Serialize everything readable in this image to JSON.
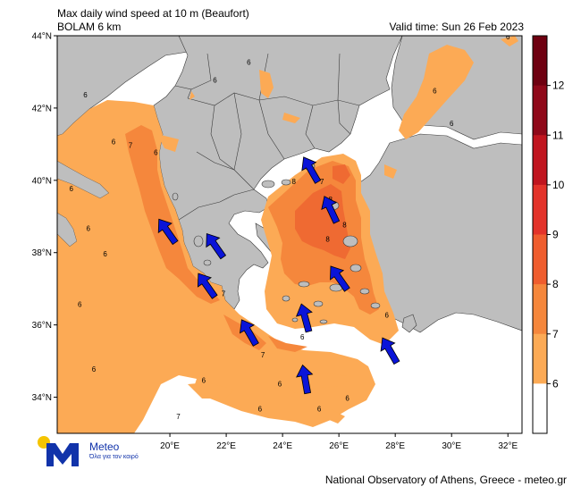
{
  "title": {
    "line1": "Max daily wind speed at 10 m (Beaufort)",
    "line2": "BOLAM 6 km",
    "valid": "Valid time: Sun 26 Feb 2023"
  },
  "footer": "National Observatory of Athens, Greece - meteo.gr",
  "logo": {
    "name": "Meteo",
    "tagline": "Όλα για τον καιρό"
  },
  "map": {
    "lat_labels": [
      "44°N",
      "42°N",
      "40°N",
      "38°N",
      "36°N",
      "34°N"
    ],
    "lat_values": [
      44,
      42,
      40,
      38,
      36,
      34
    ],
    "lon_labels": [
      "20°E",
      "22°E",
      "24°E",
      "26°E",
      "28°E",
      "30°E",
      "32°E"
    ],
    "lon_values": [
      20,
      22,
      24,
      26,
      28,
      30,
      32
    ],
    "extent": {
      "lon_min": 16,
      "lon_max": 32.5,
      "lat_min": 33,
      "lat_max": 44
    },
    "contour_labels": [
      {
        "text": "6",
        "lon": 32.0,
        "lat": 43.9
      },
      {
        "text": "6",
        "lon": 17.0,
        "lat": 42.3
      },
      {
        "text": "6",
        "lon": 22.8,
        "lat": 43.2
      },
      {
        "text": "6",
        "lon": 21.6,
        "lat": 42.7
      },
      {
        "text": "6",
        "lon": 29.4,
        "lat": 42.4
      },
      {
        "text": "6",
        "lon": 30.0,
        "lat": 41.5
      },
      {
        "text": "7",
        "lon": 18.6,
        "lat": 40.9
      },
      {
        "text": "6",
        "lon": 18.0,
        "lat": 41.0
      },
      {
        "text": "6",
        "lon": 19.5,
        "lat": 40.7
      },
      {
        "text": "6",
        "lon": 16.5,
        "lat": 39.7
      },
      {
        "text": "6",
        "lon": 17.1,
        "lat": 38.6
      },
      {
        "text": "6",
        "lon": 17.7,
        "lat": 37.9
      },
      {
        "text": "6",
        "lon": 16.8,
        "lat": 36.5
      },
      {
        "text": "6",
        "lon": 17.3,
        "lat": 34.7
      },
      {
        "text": "7",
        "lon": 21.9,
        "lat": 36.8
      },
      {
        "text": "7",
        "lon": 23.3,
        "lat": 35.1
      },
      {
        "text": "6",
        "lon": 21.2,
        "lat": 34.4
      },
      {
        "text": "6",
        "lon": 23.9,
        "lat": 34.3
      },
      {
        "text": "7",
        "lon": 20.3,
        "lat": 33.4
      },
      {
        "text": "6",
        "lon": 23.2,
        "lat": 33.6
      },
      {
        "text": "6",
        "lon": 25.3,
        "lat": 33.6
      },
      {
        "text": "6",
        "lon": 26.3,
        "lat": 33.9
      },
      {
        "text": "8",
        "lon": 25.7,
        "lat": 39.4
      },
      {
        "text": "8",
        "lon": 26.2,
        "lat": 38.7
      },
      {
        "text": "8",
        "lon": 25.6,
        "lat": 38.3
      },
      {
        "text": "6",
        "lon": 24.7,
        "lat": 35.6
      },
      {
        "text": "7",
        "lon": 25.4,
        "lat": 39.9
      },
      {
        "text": "8",
        "lon": 24.4,
        "lat": 39.9
      },
      {
        "text": "6",
        "lon": 27.7,
        "lat": 36.2
      }
    ],
    "wind_arrows": [
      {
        "lon": 25.0,
        "lat": 40.3,
        "dir": 330
      },
      {
        "lon": 25.7,
        "lat": 39.2,
        "dir": 335
      },
      {
        "lon": 19.9,
        "lat": 38.6,
        "dir": 325
      },
      {
        "lon": 21.6,
        "lat": 38.2,
        "dir": 325
      },
      {
        "lon": 26.0,
        "lat": 37.3,
        "dir": 325
      },
      {
        "lon": 21.3,
        "lat": 37.1,
        "dir": 325
      },
      {
        "lon": 24.8,
        "lat": 36.2,
        "dir": 345
      },
      {
        "lon": 22.8,
        "lat": 35.8,
        "dir": 330
      },
      {
        "lon": 27.8,
        "lat": 35.3,
        "dir": 330
      },
      {
        "lon": 24.8,
        "lat": 34.5,
        "dir": 350
      }
    ]
  },
  "colorbar": {
    "levels": [
      6,
      7,
      8,
      9,
      10,
      11,
      12
    ],
    "colors": [
      "#ffffff",
      "#fcaa55",
      "#f5873c",
      "#ef5d2e",
      "#e3332a",
      "#c0151f",
      "#8f0819",
      "#6e0010"
    ],
    "labels": [
      "6",
      "7",
      "8",
      "9",
      "10",
      "11",
      "12"
    ]
  },
  "colors": {
    "land": "#bebebe",
    "sea": "#ffffff",
    "arrow": "#0a14d8"
  }
}
